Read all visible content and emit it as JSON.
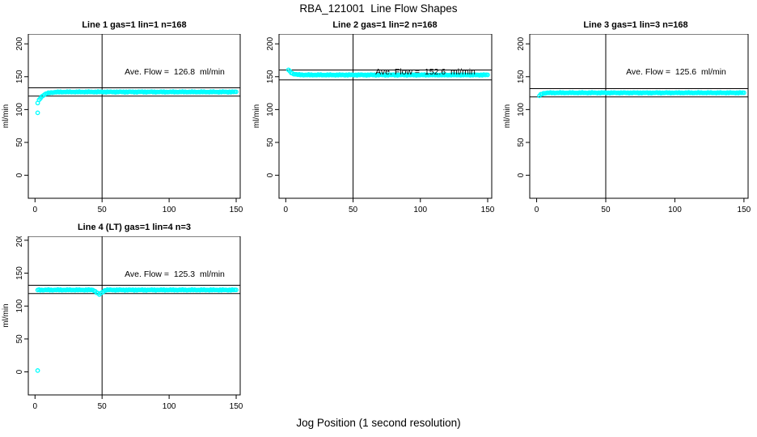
{
  "page_title": "RBA_121001  Line Flow Shapes",
  "xlabel": "Jog Position (1 second resolution)",
  "colors": {
    "marker": "#00FFFF",
    "axis": "#000000",
    "background": "#FFFFFF"
  },
  "chart_data": [
    {
      "type": "scatter",
      "title": "Line 1 gas=1 lin=1 n=168",
      "n": 168,
      "ave_flow": 126.8,
      "annotation": "Ave. Flow =  126.8  ml/min",
      "ylabel": "ml/min",
      "x_ticks": [
        0,
        50,
        100,
        150
      ],
      "y_ticks": [
        0,
        50,
        100,
        150,
        200
      ],
      "x_domain": [
        -5,
        153
      ],
      "y_domain": [
        -35,
        215
      ],
      "vline_x": 50,
      "ref_lines": [
        133.1,
        120.5
      ],
      "marker_color": "#00FFFF",
      "grid": false,
      "legend": false,
      "series": {
        "x_start": 2,
        "x_end": 150,
        "flat_value": 126.8,
        "approach": {
          "from": 110,
          "tau": 3.5
        },
        "extra_points": [
          [
            2,
            95
          ]
        ]
      }
    },
    {
      "type": "scatter",
      "title": "Line 2 gas=1 lin=2 n=168",
      "n": 168,
      "ave_flow": 152.6,
      "annotation": "Ave. Flow =  152.6  ml/min",
      "ylabel": "ml/min",
      "x_ticks": [
        0,
        50,
        100,
        150
      ],
      "y_ticks": [
        0,
        50,
        100,
        150,
        200
      ],
      "x_domain": [
        -5,
        153
      ],
      "y_domain": [
        -35,
        215
      ],
      "vline_x": 50,
      "ref_lines": [
        160.2,
        145.0
      ],
      "marker_color": "#00FFFF",
      "grid": false,
      "legend": false,
      "series": {
        "x_start": 2,
        "x_end": 150,
        "flat_value": 152.7,
        "approach": {
          "from": 160.5,
          "tau": 2.5
        },
        "extra_points": []
      }
    },
    {
      "type": "scatter",
      "title": "Line 3 gas=1 lin=3 n=168",
      "n": 168,
      "ave_flow": 125.6,
      "annotation": "Ave. Flow =  125.6  ml/min",
      "ylabel": "ml/min",
      "x_ticks": [
        0,
        50,
        100,
        150
      ],
      "y_ticks": [
        0,
        50,
        100,
        150,
        200
      ],
      "x_domain": [
        -5,
        153
      ],
      "y_domain": [
        -35,
        215
      ],
      "vline_x": 50,
      "ref_lines": [
        131.9,
        119.3
      ],
      "marker_color": "#00FFFF",
      "grid": false,
      "legend": false,
      "series": {
        "x_start": 2,
        "x_end": 150,
        "flat_value": 125.5,
        "approach": {
          "from": 121,
          "tau": 1.8
        },
        "extra_points": []
      }
    },
    {
      "type": "scatter",
      "title": "Line 4 (LT) gas=1 lin=4 n=3",
      "n": 3,
      "ave_flow": 125.3,
      "annotation": "Ave. Flow =  125.3  ml/min",
      "ylabel": "ml/min",
      "x_ticks": [
        0,
        50,
        100,
        150
      ],
      "y_ticks": [
        0,
        50,
        100,
        150,
        200
      ],
      "x_domain": [
        -5,
        153
      ],
      "y_domain": [
        -35,
        206
      ],
      "vline_x": 50,
      "ref_lines": [
        131.6,
        119.0
      ],
      "marker_color": "#00FFFF",
      "grid": false,
      "legend": false,
      "series": {
        "x_start": 2,
        "x_end": 150,
        "flat_value": 124.5,
        "dip": {
          "center": 48,
          "width": 4.5,
          "depth": 7
        },
        "extra_points": [
          [
            2,
            2
          ]
        ]
      }
    }
  ]
}
